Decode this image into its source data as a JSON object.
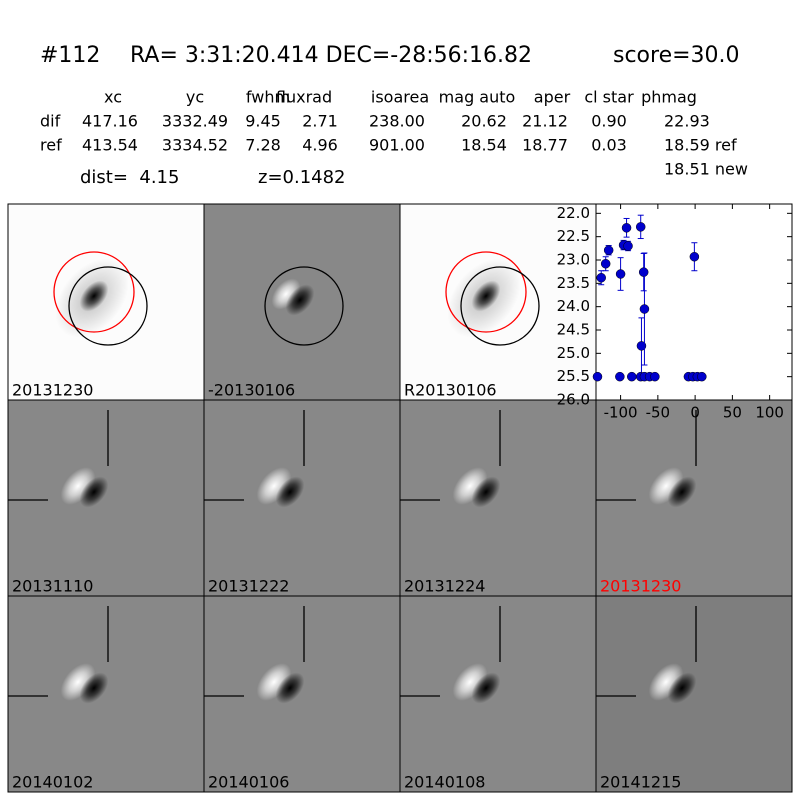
{
  "header": {
    "id": "#112",
    "coords": "RA= 3:31:20.414 DEC=-28:56:16.82",
    "score": "score=30.0"
  },
  "table": {
    "columns": [
      "xc",
      "yc",
      "fwhm",
      "fluxrad",
      "isoarea",
      "mag auto",
      "aper",
      "cl star",
      "phmag"
    ],
    "rows": [
      {
        "label": "dif",
        "cells": [
          "417.16",
          "3332.49",
          "9.45",
          "2.71",
          "238.00",
          "20.62",
          "21.12",
          "0.90",
          "22.93"
        ]
      },
      {
        "label": "ref",
        "cells": [
          "413.54",
          "3334.52",
          "7.28",
          "4.96",
          "901.00",
          "18.54",
          "18.77",
          "0.03",
          "18.59 ref"
        ]
      }
    ],
    "extra": "18.51 new"
  },
  "dist": "dist=  4.15",
  "z": "z=0.1482",
  "panels": [
    {
      "label": "20131230",
      "color": "#000000"
    },
    {
      "label": "-20130106",
      "color": "#000000"
    },
    {
      "label": "R20130106",
      "color": "#000000"
    },
    {
      "label": "20131110",
      "color": "#000000"
    },
    {
      "label": "20131222",
      "color": "#000000"
    },
    {
      "label": "20131224",
      "color": "#000000"
    },
    {
      "label": "20131230",
      "color": "#ff0000"
    },
    {
      "label": "20140102",
      "color": "#000000"
    },
    {
      "label": "20140106",
      "color": "#000000"
    },
    {
      "label": "20140108",
      "color": "#000000"
    },
    {
      "label": "20141215",
      "color": "#000000"
    }
  ],
  "chart_data": {
    "type": "scatter",
    "color": "#0000cc",
    "x": [
      -126,
      -120,
      -116,
      -131,
      -100,
      -96,
      -92,
      -90,
      -101,
      -85,
      -73,
      -72,
      -69,
      -68,
      -73,
      -68,
      -61,
      -54,
      -9,
      -3,
      3,
      9,
      -1
    ],
    "values": [
      23.38,
      23.08,
      22.79,
      25.5,
      23.3,
      22.68,
      22.31,
      22.7,
      25.5,
      25.5,
      22.29,
      24.84,
      23.26,
      24.05,
      25.5,
      25.5,
      25.5,
      25.5,
      25.5,
      25.5,
      25.5,
      25.5,
      22.93
    ],
    "errors": [
      0.15,
      0.15,
      0.1,
      null,
      0.35,
      0.1,
      0.2,
      0.1,
      null,
      null,
      0.25,
      0.6,
      0.4,
      1.2,
      null,
      null,
      null,
      null,
      null,
      null,
      null,
      null,
      0.3
    ],
    "xlim": [
      -133,
      130
    ],
    "ylim": [
      26.0,
      21.8
    ],
    "xticks": [
      -100,
      -50,
      0,
      50,
      100
    ],
    "yticks": [
      {
        "value": 22,
        "label": "22.0"
      },
      {
        "value": 22.5,
        "label": "22.5"
      },
      {
        "value": 23,
        "label": "23.0"
      },
      {
        "value": 23.5,
        "label": "23.5"
      },
      {
        "value": 24,
        "label": "24.0"
      },
      {
        "value": 24.5,
        "label": "24.5"
      },
      {
        "value": 25,
        "label": "25.0"
      },
      {
        "value": 25.5,
        "label": "25.5"
      },
      {
        "value": 26,
        "label": "26.0"
      }
    ]
  }
}
